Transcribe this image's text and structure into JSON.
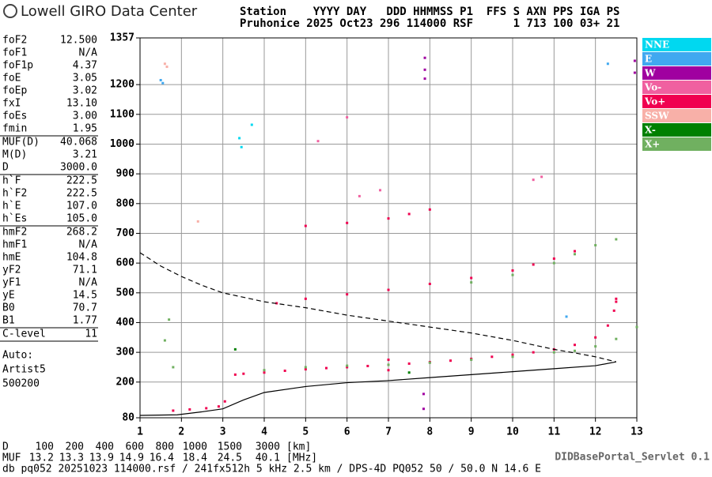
{
  "header": {
    "logo": "Lowell GIRO Data Center",
    "row1": "Station    YYYY DAY   DDD HHMMSS P1  FFS S AXN PPS IGA PS",
    "row2": "Pruhonice 2025 Oct23 296 114000 RSF      1 713 100 03+ 21"
  },
  "parameters": [
    [
      [
        "foF2",
        "12.500"
      ],
      [
        "foF1",
        "N/A"
      ],
      [
        "foF1p",
        "4.37"
      ],
      [
        "foE",
        "3.05"
      ],
      [
        "foEp",
        "3.02"
      ],
      [
        "fxI",
        "13.10"
      ],
      [
        "foEs",
        "3.00"
      ],
      [
        "fmin",
        "1.95"
      ]
    ],
    [
      [
        "MUF(D)",
        "40.068"
      ],
      [
        "M(D)",
        "3.21"
      ],
      [
        "D",
        "3000.0"
      ]
    ],
    [
      [
        "h`F",
        "222.5"
      ],
      [
        "h`F2",
        "222.5"
      ],
      [
        "h`E",
        "107.0"
      ],
      [
        "h`Es",
        "105.0"
      ]
    ],
    [
      [
        "hmF2",
        "268.2"
      ],
      [
        "hmF1",
        "N/A"
      ],
      [
        "hmE",
        "104.8"
      ],
      [
        "yF2",
        "71.1"
      ],
      [
        "yF1",
        "N/A"
      ],
      [
        "yE",
        "14.5"
      ],
      [
        "B0",
        "70.7"
      ],
      [
        "B1",
        "1.77"
      ]
    ],
    [
      [
        "C-level",
        "11"
      ]
    ]
  ],
  "autoscaling": [
    "Auto:",
    "Artist5",
    "500200"
  ],
  "muf_table": {
    "d_label": "D",
    "d_values": [
      "100",
      "200",
      "400",
      "600",
      "800",
      "1000",
      "1500",
      "3000"
    ],
    "d_unit": "[km]",
    "muf_label": "MUF",
    "muf_values": [
      "13.2",
      "13.3",
      "13.9",
      "14.9",
      "16.4",
      "18.4",
      "24.5",
      "40.1"
    ],
    "muf_unit": "[MHz]"
  },
  "footer": "db pq052 20251023 114000.rsf / 241fx512h 5 kHz 2.5 km / DPS-4D PQ052 50 / 50.0 N 14.6 E",
  "servlet": "DIDBasePortal_Servlet 0.1",
  "chart_data": {
    "type": "scatter",
    "xlim": [
      1,
      13
    ],
    "ylim": [
      80,
      1357
    ],
    "xticks": [
      1,
      2,
      3,
      4,
      5,
      6,
      7,
      8,
      9,
      10,
      11,
      12,
      13
    ],
    "yticks": [
      80,
      200,
      300,
      400,
      500,
      600,
      700,
      800,
      900,
      1000,
      1100,
      1200,
      1357
    ],
    "grid": true,
    "legend": "right",
    "series": [
      {
        "name": "NNE",
        "color": "#00d8f0",
        "style": "points",
        "x": [
          3.4,
          3.7,
          3.45
        ],
        "values": [
          1020,
          1065,
          990
        ]
      },
      {
        "name": "E",
        "color": "#40a8f0",
        "style": "points",
        "x": [
          1.5,
          1.55,
          11.3,
          12.3
        ],
        "values": [
          1215,
          1205,
          420,
          1270
        ]
      },
      {
        "name": "W",
        "color": "#a000a0",
        "style": "points",
        "x": [
          7.88,
          7.88,
          7.88,
          12.95,
          12.95,
          7.85,
          7.85
        ],
        "values": [
          1290,
          1250,
          1220,
          1280,
          1240,
          160,
          110
        ]
      },
      {
        "name": "Vo-",
        "color": "#f060a0",
        "style": "points",
        "x": [
          6.3,
          6.8,
          10.5,
          10.7,
          6.0,
          5.3
        ],
        "values": [
          825,
          845,
          880,
          890,
          1090,
          1010
        ]
      },
      {
        "name": "Vo+",
        "color": "#f00050",
        "style": "points",
        "x": [
          1.8,
          2.2,
          2.6,
          2.9,
          3.05,
          3.3,
          3.5,
          4,
          4.5,
          5,
          5.5,
          6,
          6.5,
          7,
          7.5,
          8,
          8.5,
          9,
          9.5,
          10,
          10.5,
          11,
          11.5,
          12,
          12.3,
          12.45,
          12.5,
          4.3,
          5,
          6,
          7,
          8,
          9,
          10,
          10.5,
          11,
          11.5,
          5,
          6,
          7,
          7.5,
          8,
          7,
          7,
          12.5
        ],
        "values": [
          104,
          108,
          112,
          118,
          135,
          225,
          228,
          232,
          238,
          243,
          247,
          250,
          254,
          258,
          262,
          267,
          272,
          278,
          285,
          292,
          300,
          310,
          325,
          350,
          390,
          440,
          480,
          465,
          480,
          495,
          510,
          530,
          550,
          575,
          595,
          615,
          640,
          725,
          735,
          750,
          765,
          780,
          275,
          240,
          470
        ]
      },
      {
        "name": "SSW",
        "color": "#f8b0a8",
        "style": "points",
        "x": [
          1.6,
          1.65,
          2.4
        ],
        "values": [
          1270,
          1260,
          740
        ]
      },
      {
        "name": "X-",
        "color": "#008000",
        "style": "points",
        "x": [
          3.3,
          7.5
        ],
        "values": [
          310,
          232
        ]
      },
      {
        "name": "X+",
        "color": "#70b060",
        "style": "points",
        "x": [
          4,
          5,
          6,
          7,
          8,
          9,
          10,
          11,
          11.5,
          12,
          12.5,
          13,
          9,
          10,
          11,
          11.5,
          12,
          12.5,
          1.6,
          1.7,
          1.8
        ],
        "values": [
          240,
          250,
          255,
          258,
          265,
          275,
          285,
          300,
          305,
          320,
          345,
          385,
          535,
          560,
          600,
          630,
          660,
          680,
          340,
          410,
          250
        ]
      },
      {
        "color": "#000000",
        "style": "dashed",
        "x": [
          1,
          1.5,
          2,
          2.5,
          3,
          4,
          5,
          6,
          7,
          8,
          9,
          10,
          11,
          11.5,
          12,
          12.5
        ],
        "values": [
          635,
          590,
          555,
          525,
          500,
          470,
          450,
          425,
          405,
          385,
          365,
          340,
          310,
          298,
          285,
          268
        ]
      },
      {
        "color": "#000000",
        "style": "solid",
        "x": [
          1,
          1.9,
          2.5,
          3,
          3.5,
          4,
          5,
          6,
          7,
          8,
          9,
          10,
          11,
          12,
          12.5
        ],
        "values": [
          88,
          90,
          100,
          110,
          140,
          165,
          185,
          198,
          205,
          215,
          225,
          235,
          245,
          255,
          268
        ]
      }
    ]
  }
}
